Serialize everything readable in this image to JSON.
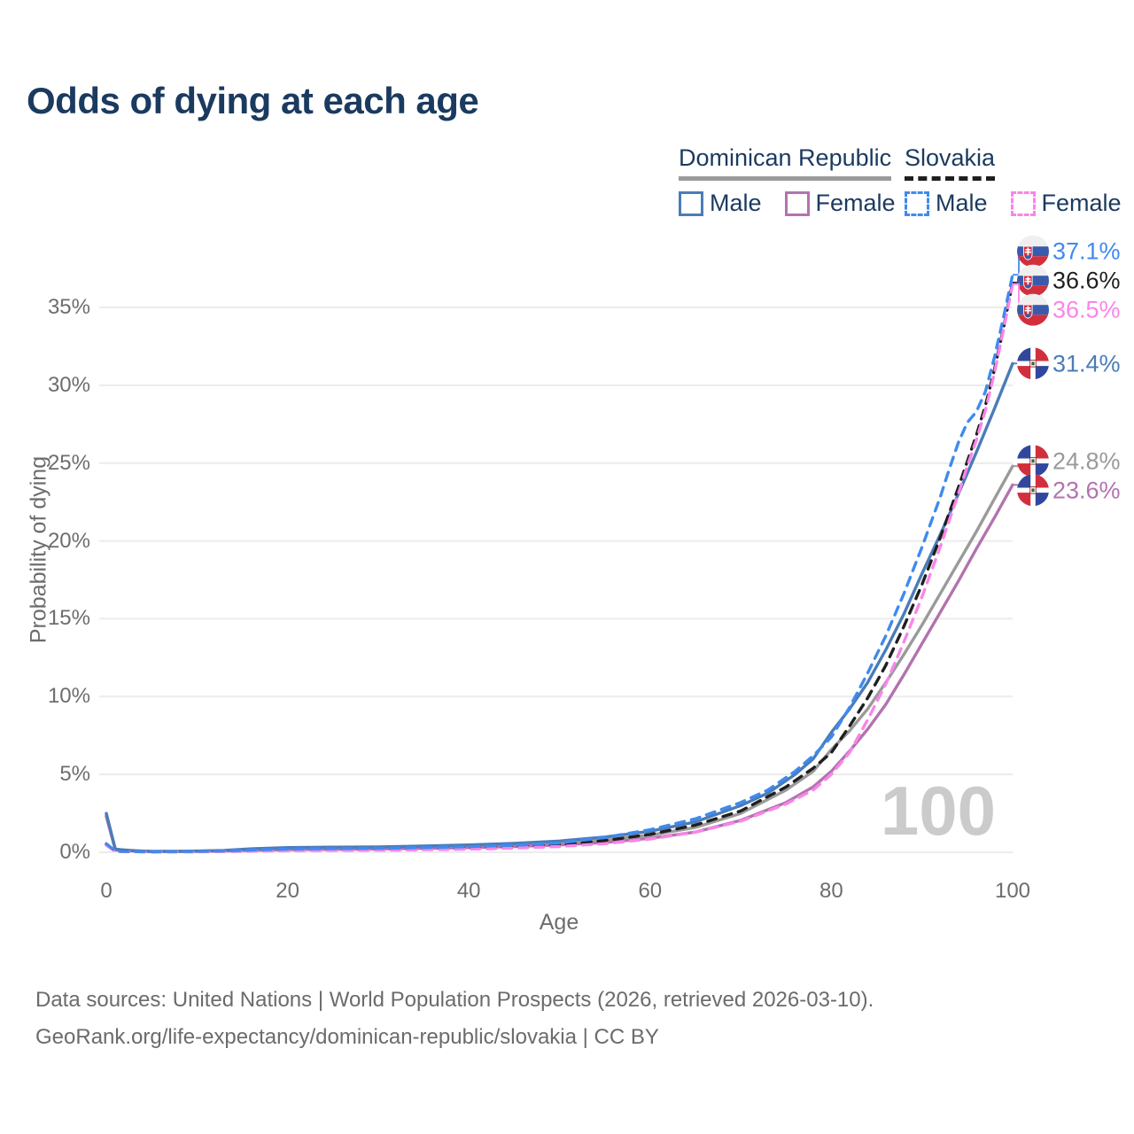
{
  "title": "Odds of dying at each age",
  "legend": {
    "groups": [
      {
        "label": "Dominican Republic",
        "line_style": "solid",
        "underline_color": "#9a9a9a",
        "items": [
          {
            "label": "Male",
            "color": "#4b7cb8",
            "style": "solid"
          },
          {
            "label": "Female",
            "color": "#b273ae",
            "style": "solid"
          }
        ]
      },
      {
        "label": "Slovakia",
        "line_style": "dashed",
        "underline_color": "#1f1f1f",
        "items": [
          {
            "label": "Male",
            "color": "#3f8af0",
            "style": "dashed"
          },
          {
            "label": "Female",
            "color": "#fb84e9",
            "style": "dashed"
          }
        ]
      }
    ]
  },
  "watermark": "100",
  "footer": {
    "line1": "Data sources: United Nations | World Population Prospects (2026, retrieved 2026-03-10).",
    "line2": "GeoRank.org/life-expectancy/dominican-republic/slovakia | CC BY"
  },
  "chart_data": {
    "type": "line",
    "title": "Odds of dying at each age",
    "xlabel": "Age",
    "ylabel": "Probability of dying",
    "xlim": [
      0,
      100
    ],
    "ylim": [
      0,
      38
    ],
    "x_ticks": [
      0,
      20,
      40,
      60,
      80,
      100
    ],
    "y_ticks": [
      0,
      5,
      10,
      15,
      20,
      25,
      30,
      35
    ],
    "y_tick_labels": [
      "0%",
      "5%",
      "10%",
      "15%",
      "20%",
      "25%",
      "30%",
      "35%"
    ],
    "grid": "horizontal",
    "legend_position": "top-right",
    "series": [
      {
        "id": "do-total",
        "name": "Dominican Republic — Total",
        "country": "Dominican Republic",
        "color": "#9a9a9a",
        "dashed": false,
        "flag": "dominican-republic-flag-icon",
        "end_label": "24.8%",
        "end_value": 24.8,
        "points": [
          [
            0,
            2.4
          ],
          [
            1,
            0.18
          ],
          [
            5,
            0.05
          ],
          [
            10,
            0.07
          ],
          [
            13,
            0.1
          ],
          [
            16,
            0.18
          ],
          [
            20,
            0.25
          ],
          [
            25,
            0.27
          ],
          [
            30,
            0.28
          ],
          [
            35,
            0.33
          ],
          [
            40,
            0.38
          ],
          [
            45,
            0.47
          ],
          [
            50,
            0.6
          ],
          [
            55,
            0.8
          ],
          [
            60,
            1.1
          ],
          [
            65,
            1.6
          ],
          [
            70,
            2.5
          ],
          [
            75,
            4.0
          ],
          [
            78,
            5.2
          ],
          [
            80,
            6.6
          ],
          [
            82,
            7.8
          ],
          [
            84,
            9.2
          ],
          [
            86,
            10.9
          ],
          [
            88,
            12.7
          ],
          [
            90,
            14.6
          ],
          [
            92,
            16.6
          ],
          [
            94,
            18.6
          ],
          [
            96,
            20.6
          ],
          [
            98,
            22.7
          ],
          [
            100,
            24.8
          ]
        ]
      },
      {
        "id": "do-female",
        "name": "Dominican Republic — Female",
        "country": "Dominican Republic",
        "sex": "Female",
        "color": "#b273ae",
        "dashed": false,
        "flag": "dominican-republic-flag-icon",
        "end_label": "23.6%",
        "end_value": 23.6,
        "points": [
          [
            0,
            2.3
          ],
          [
            1,
            0.15
          ],
          [
            5,
            0.04
          ],
          [
            10,
            0.05
          ],
          [
            13,
            0.08
          ],
          [
            16,
            0.12
          ],
          [
            20,
            0.17
          ],
          [
            25,
            0.19
          ],
          [
            30,
            0.21
          ],
          [
            35,
            0.25
          ],
          [
            40,
            0.3
          ],
          [
            45,
            0.37
          ],
          [
            50,
            0.47
          ],
          [
            55,
            0.63
          ],
          [
            60,
            0.9
          ],
          [
            65,
            1.3
          ],
          [
            70,
            2.05
          ],
          [
            75,
            3.2
          ],
          [
            78,
            4.2
          ],
          [
            80,
            5.2
          ],
          [
            82,
            6.5
          ],
          [
            84,
            7.9
          ],
          [
            86,
            9.5
          ],
          [
            88,
            11.4
          ],
          [
            90,
            13.4
          ],
          [
            92,
            15.4
          ],
          [
            94,
            17.4
          ],
          [
            96,
            19.5
          ],
          [
            98,
            21.5
          ],
          [
            100,
            23.6
          ]
        ]
      },
      {
        "id": "do-male",
        "name": "Dominican Republic — Male",
        "country": "Dominican Republic",
        "sex": "Male",
        "color": "#4b7cb8",
        "dashed": false,
        "flag": "dominican-republic-flag-icon",
        "end_label": "31.4%",
        "end_value": 31.4,
        "points": [
          [
            0,
            2.5
          ],
          [
            1,
            0.2
          ],
          [
            3,
            0.08
          ],
          [
            5,
            0.06
          ],
          [
            8,
            0.06
          ],
          [
            10,
            0.08
          ],
          [
            13,
            0.12
          ],
          [
            16,
            0.22
          ],
          [
            20,
            0.3
          ],
          [
            25,
            0.33
          ],
          [
            30,
            0.34
          ],
          [
            35,
            0.4
          ],
          [
            40,
            0.47
          ],
          [
            45,
            0.57
          ],
          [
            50,
            0.72
          ],
          [
            55,
            0.98
          ],
          [
            60,
            1.35
          ],
          [
            65,
            1.95
          ],
          [
            70,
            3.0
          ],
          [
            73,
            3.8
          ],
          [
            76,
            5.0
          ],
          [
            78,
            6.0
          ],
          [
            80,
            7.7
          ],
          [
            82,
            9.2
          ],
          [
            84,
            10.9
          ],
          [
            86,
            13.0
          ],
          [
            88,
            15.3
          ],
          [
            90,
            17.9
          ],
          [
            92,
            20.4
          ],
          [
            94,
            23.0
          ],
          [
            96,
            25.7
          ],
          [
            98,
            28.5
          ],
          [
            100,
            31.4
          ]
        ]
      },
      {
        "id": "sk-total",
        "name": "Slovakia — Total",
        "country": "Slovakia",
        "color": "#1f1f1f",
        "dashed": true,
        "flag": "slovakia-flag-icon",
        "end_label": "36.6%",
        "end_value": 36.6,
        "points": [
          [
            0,
            0.5
          ],
          [
            1,
            0.06
          ],
          [
            5,
            0.03
          ],
          [
            10,
            0.04
          ],
          [
            15,
            0.09
          ],
          [
            20,
            0.14
          ],
          [
            30,
            0.18
          ],
          [
            40,
            0.27
          ],
          [
            45,
            0.35
          ],
          [
            50,
            0.48
          ],
          [
            55,
            0.75
          ],
          [
            60,
            1.15
          ],
          [
            65,
            1.75
          ],
          [
            70,
            2.65
          ],
          [
            75,
            4.2
          ],
          [
            78,
            5.4
          ],
          [
            80,
            6.4
          ],
          [
            82,
            8.1
          ],
          [
            84,
            9.9
          ],
          [
            86,
            12.0
          ],
          [
            88,
            14.5
          ],
          [
            90,
            17.2
          ],
          [
            92,
            20.2
          ],
          [
            94,
            23.4
          ],
          [
            95,
            25.1
          ],
          [
            96,
            26.8
          ],
          [
            97,
            28.7
          ],
          [
            98,
            31.0
          ],
          [
            99,
            33.7
          ],
          [
            100,
            36.6
          ]
        ]
      },
      {
        "id": "sk-female",
        "name": "Slovakia — Female",
        "country": "Slovakia",
        "sex": "Female",
        "color": "#fb84e9",
        "dashed": true,
        "flag": "slovakia-flag-icon",
        "end_label": "36.5%",
        "end_value": 36.5,
        "points": [
          [
            0,
            0.45
          ],
          [
            1,
            0.05
          ],
          [
            5,
            0.03
          ],
          [
            10,
            0.03
          ],
          [
            15,
            0.06
          ],
          [
            20,
            0.1
          ],
          [
            30,
            0.13
          ],
          [
            40,
            0.2
          ],
          [
            45,
            0.27
          ],
          [
            50,
            0.37
          ],
          [
            55,
            0.55
          ],
          [
            60,
            0.85
          ],
          [
            65,
            1.3
          ],
          [
            70,
            2.0
          ],
          [
            75,
            3.1
          ],
          [
            78,
            4.0
          ],
          [
            80,
            5.0
          ],
          [
            82,
            6.4
          ],
          [
            84,
            8.5
          ],
          [
            86,
            10.8
          ],
          [
            88,
            13.5
          ],
          [
            90,
            16.4
          ],
          [
            92,
            19.6
          ],
          [
            94,
            23.0
          ],
          [
            95,
            24.8
          ],
          [
            96,
            26.5
          ],
          [
            97,
            28.4
          ],
          [
            98,
            30.8
          ],
          [
            99,
            33.6
          ],
          [
            100,
            36.5
          ]
        ]
      },
      {
        "id": "sk-male",
        "name": "Slovakia — Male",
        "country": "Slovakia",
        "sex": "Male",
        "color": "#3f8af0",
        "dashed": true,
        "flag": "slovakia-flag-icon",
        "end_label": "37.1%",
        "end_value": 37.1,
        "points": [
          [
            0,
            0.55
          ],
          [
            1,
            0.07
          ],
          [
            3,
            0.04
          ],
          [
            5,
            0.04
          ],
          [
            10,
            0.05
          ],
          [
            14,
            0.1
          ],
          [
            18,
            0.18
          ],
          [
            22,
            0.22
          ],
          [
            30,
            0.25
          ],
          [
            35,
            0.3
          ],
          [
            40,
            0.36
          ],
          [
            45,
            0.45
          ],
          [
            50,
            0.6
          ],
          [
            55,
            0.95
          ],
          [
            60,
            1.45
          ],
          [
            65,
            2.15
          ],
          [
            70,
            3.2
          ],
          [
            73,
            4.0
          ],
          [
            76,
            5.2
          ],
          [
            78,
            6.2
          ],
          [
            80,
            7.4
          ],
          [
            82,
            9.3
          ],
          [
            84,
            11.5
          ],
          [
            86,
            13.9
          ],
          [
            88,
            16.6
          ],
          [
            90,
            19.6
          ],
          [
            91,
            21.2
          ],
          [
            92,
            22.8
          ],
          [
            93,
            24.6
          ],
          [
            94,
            26.3
          ],
          [
            95,
            27.6
          ],
          [
            96,
            28.3
          ],
          [
            97,
            29.6
          ],
          [
            98,
            31.8
          ],
          [
            99,
            34.4
          ],
          [
            100,
            37.1
          ]
        ]
      }
    ]
  }
}
